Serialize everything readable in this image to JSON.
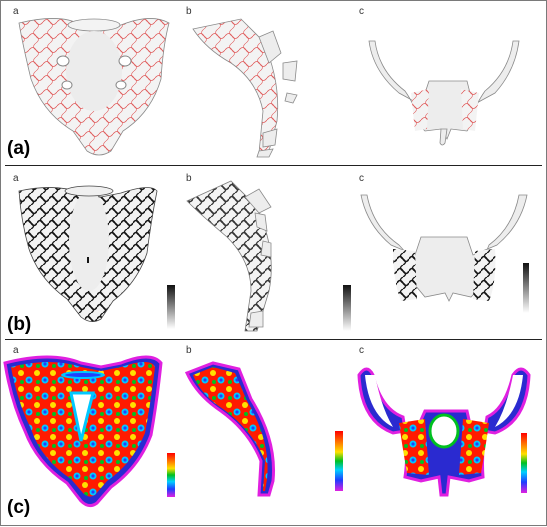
{
  "rows": [
    {
      "panel": "(a)",
      "subs": [
        "a",
        "b",
        "c"
      ]
    },
    {
      "panel": "(b)",
      "subs": [
        "a",
        "b",
        "c"
      ]
    },
    {
      "panel": "(c)",
      "subs": [
        "a",
        "b",
        "c"
      ]
    }
  ],
  "colors": {
    "bone_fill": "#ededed",
    "bone_outline": "#8a8a8a",
    "trabecular_red": "#e05a5a",
    "trabecular_black": "#141414",
    "stress_scale": [
      "#e020e0",
      "#1e3cff",
      "#00d0ff",
      "#00c020",
      "#ffe000",
      "#ff8000",
      "#ff0000"
    ]
  }
}
